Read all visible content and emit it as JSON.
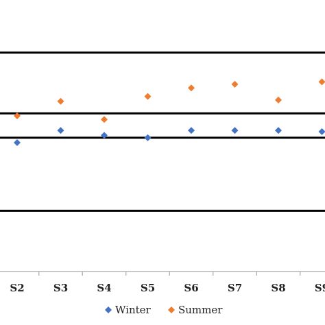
{
  "chart_data": {
    "type": "scatter",
    "categories": [
      "S2",
      "S3",
      "S4",
      "S5",
      "S6",
      "S7",
      "S8",
      "S9"
    ],
    "series": [
      {
        "name": "Winter",
        "color": "#4472C4",
        "marker": "diamond",
        "values": [
          -0.7,
          -0.2,
          -0.4,
          -0.5,
          -0.2,
          -0.2,
          -0.2,
          -0.25
        ]
      },
      {
        "name": "Summer",
        "color": "#ED7D31",
        "marker": "diamond",
        "values": [
          0.4,
          1.0,
          0.25,
          1.2,
          1.55,
          1.7,
          1.05,
          1.8
        ]
      }
    ],
    "ylim": [
      -6,
      4.6
    ],
    "reference_lines": [
      3,
      0.5,
      -0.5,
      -3.5
    ],
    "legend_position": "bottom",
    "grid": false
  }
}
